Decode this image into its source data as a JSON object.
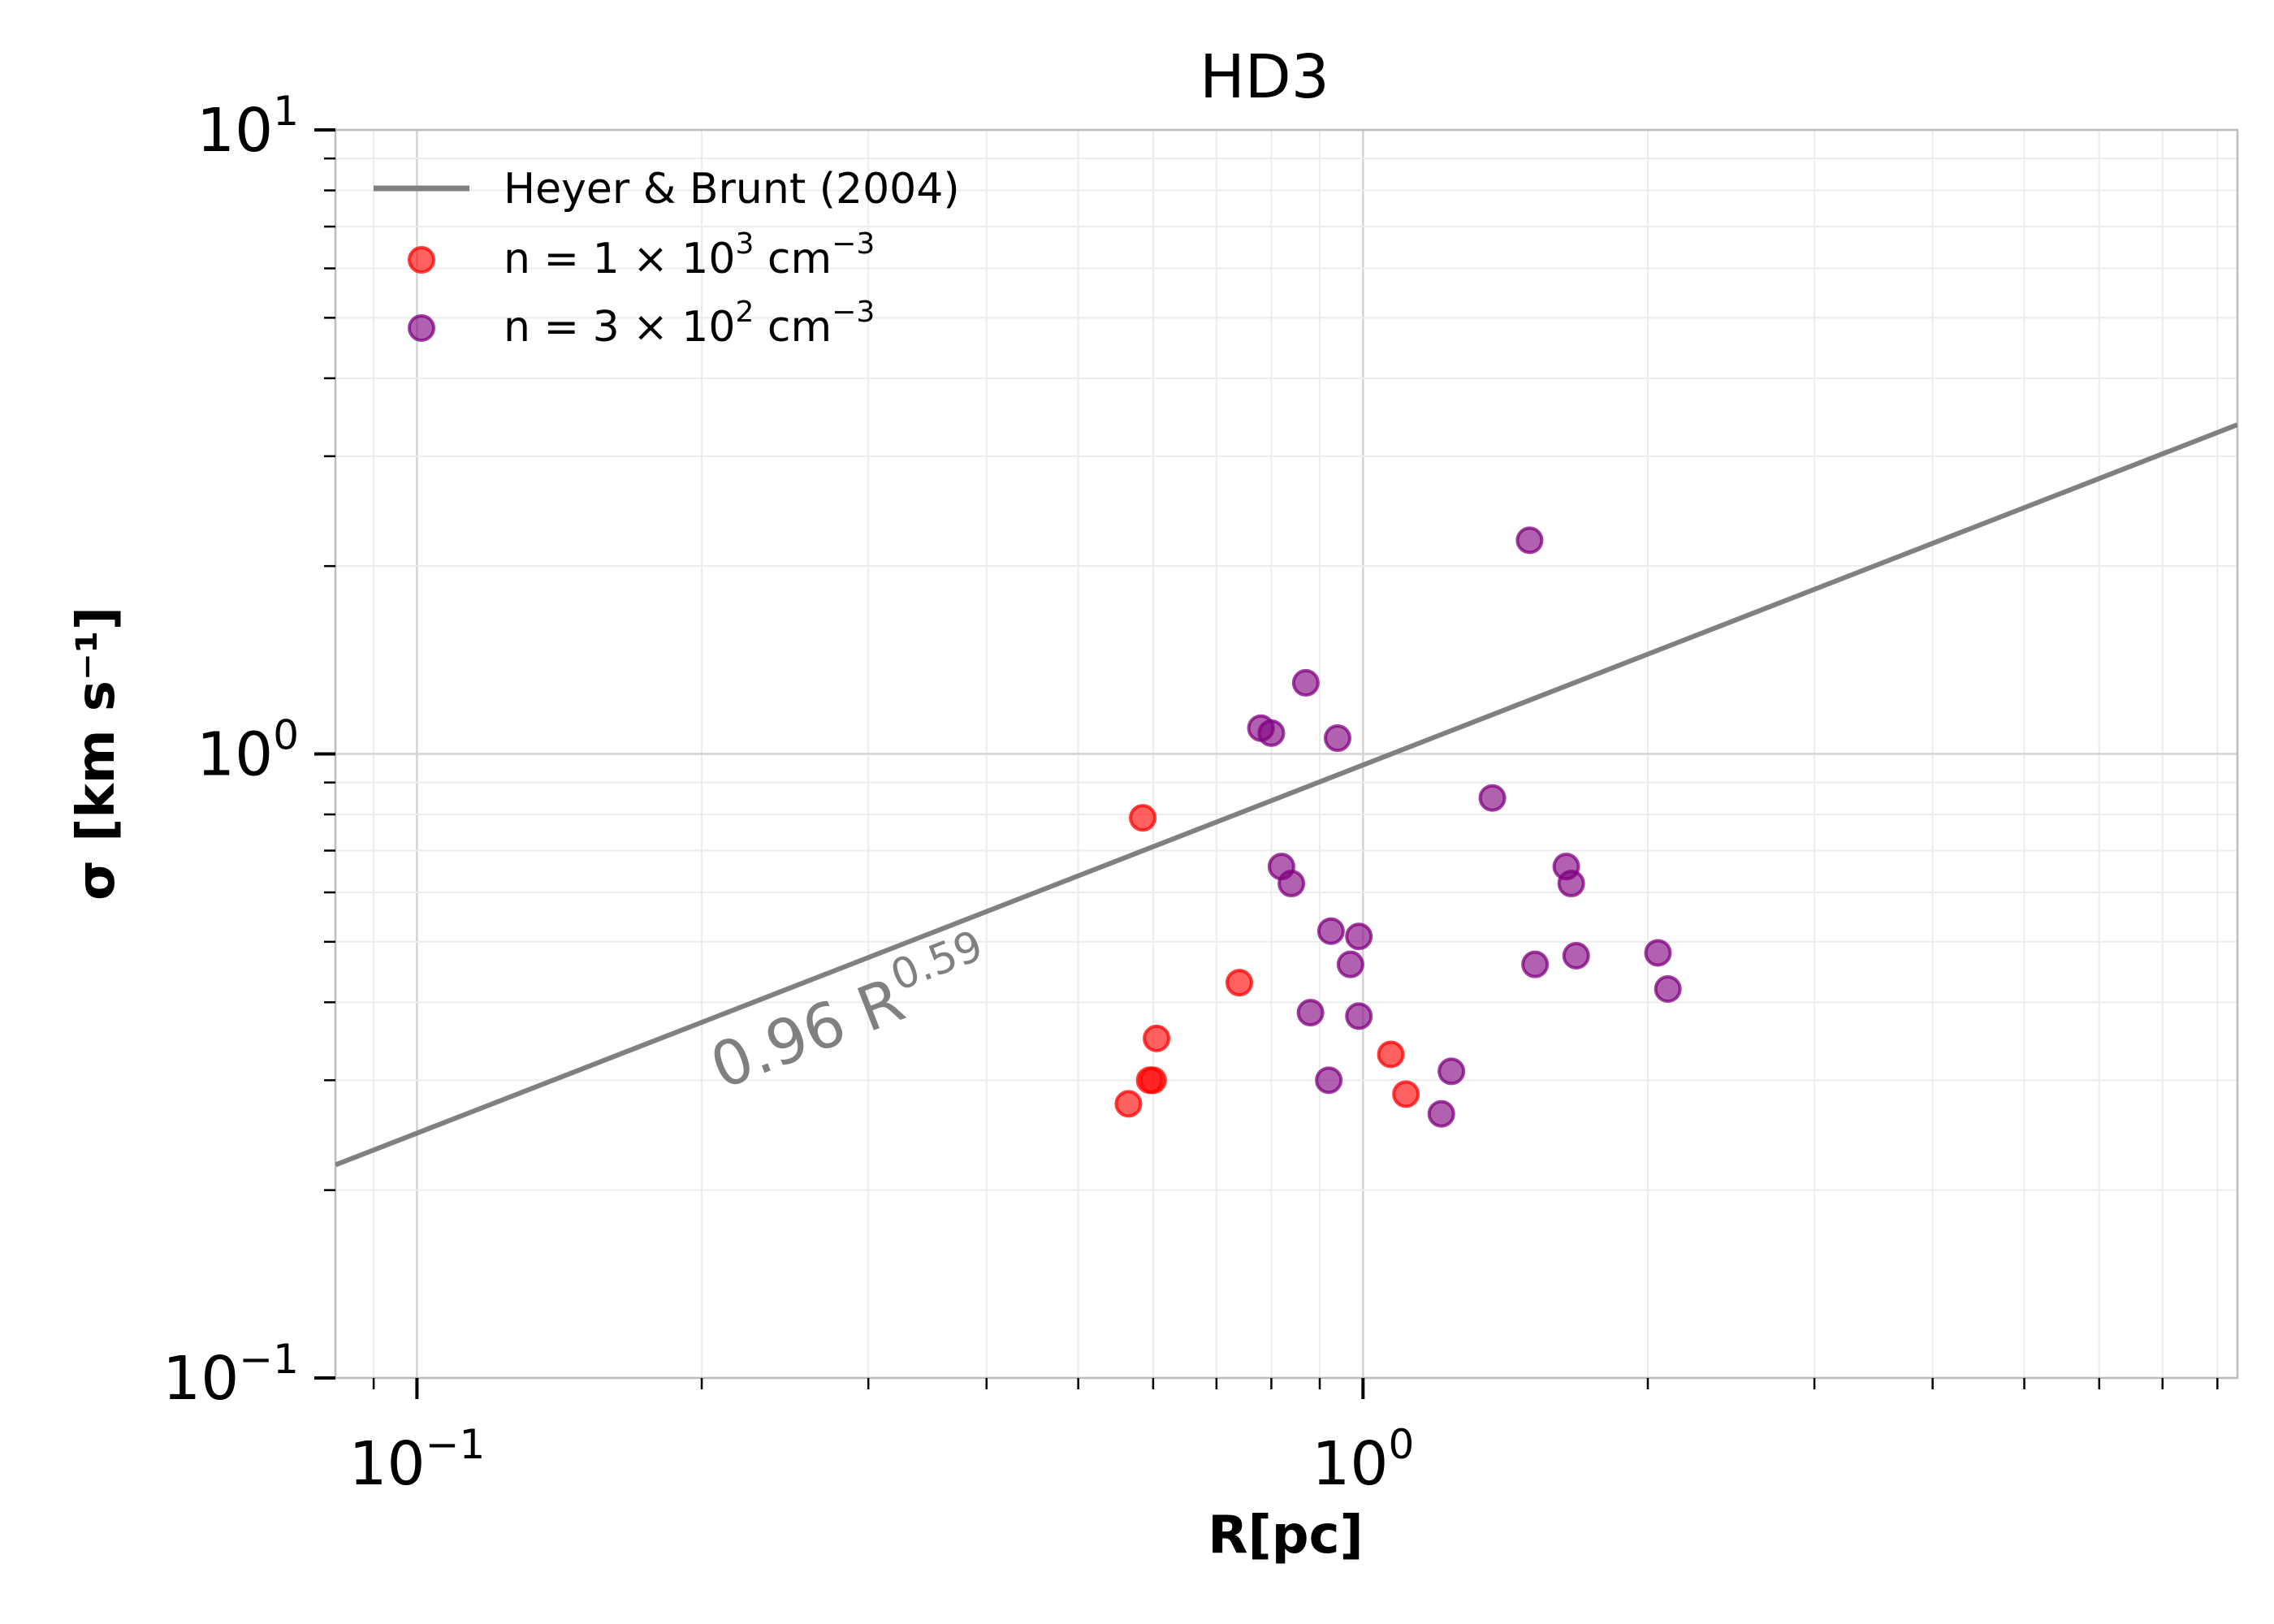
{
  "chart_data": {
    "type": "scatter",
    "title": "HD3",
    "xlabel": "R[pc]",
    "ylabel": "σ [km s⁻¹]",
    "xscale": "log",
    "yscale": "log",
    "xlim": [
      0.082,
      8.4
    ],
    "ylim": [
      0.1,
      10
    ],
    "x_ticks": [
      {
        "value": 0.1,
        "base": "10",
        "exp": "−1"
      },
      {
        "value": 1,
        "base": "10",
        "exp": "0"
      }
    ],
    "y_ticks": [
      {
        "value": 0.1,
        "base": "10",
        "exp": "−1"
      },
      {
        "value": 1,
        "base": "10",
        "exp": "0"
      },
      {
        "value": 10,
        "base": "10",
        "exp": "1"
      }
    ],
    "grid": true,
    "legend_position": "upper-left",
    "line": {
      "name": "Heyer & Brunt (2004)",
      "coefficient": 0.96,
      "exponent": 0.59,
      "color": "#808080",
      "annotation": {
        "base": "0.96 R",
        "exp": "0.59",
        "at_x": 0.21,
        "at_y": 0.29
      }
    },
    "series": [
      {
        "name": "n = 1 × 10^3 cm^-3",
        "legend": {
          "pre": "n  = 1 × 10",
          "sup1": "3",
          "mid": " cm",
          "sup2": "−3"
        },
        "color": "#ff0000",
        "points": [
          [
            0.585,
            0.79
          ],
          [
            0.74,
            0.43
          ],
          [
            0.605,
            0.35
          ],
          [
            0.6,
            0.3
          ],
          [
            0.595,
            0.3
          ],
          [
            0.565,
            0.275
          ],
          [
            1.07,
            0.33
          ],
          [
            1.11,
            0.285
          ]
        ]
      },
      {
        "name": "n = 3 × 10^2 cm^-3",
        "legend": {
          "pre": "n  = 3 × 10",
          "sup1": "2",
          "mid": " cm",
          "sup2": "−3"
        },
        "color": "#800080",
        "points": [
          [
            1.5,
            2.2
          ],
          [
            0.87,
            1.3
          ],
          [
            0.78,
            1.1
          ],
          [
            0.8,
            1.08
          ],
          [
            0.94,
            1.06
          ],
          [
            1.37,
            0.85
          ],
          [
            0.82,
            0.66
          ],
          [
            0.84,
            0.62
          ],
          [
            1.64,
            0.66
          ],
          [
            1.66,
            0.62
          ],
          [
            0.925,
            0.52
          ],
          [
            0.99,
            0.51
          ],
          [
            0.97,
            0.46
          ],
          [
            1.52,
            0.46
          ],
          [
            1.68,
            0.475
          ],
          [
            2.05,
            0.48
          ],
          [
            2.1,
            0.42
          ],
          [
            0.88,
            0.385
          ],
          [
            0.99,
            0.38
          ],
          [
            0.92,
            0.3
          ],
          [
            1.24,
            0.31
          ],
          [
            1.21,
            0.265
          ]
        ]
      }
    ]
  }
}
